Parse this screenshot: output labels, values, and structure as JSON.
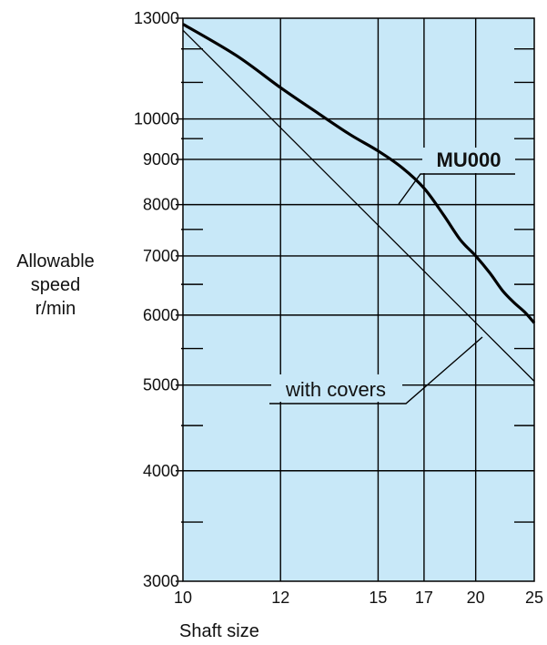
{
  "chart_data": {
    "type": "line",
    "title": "",
    "xlabel": "Shaft size",
    "ylabel_lines": [
      "Allowable",
      "speed",
      "r/min"
    ],
    "x_scale": "reciprocal",
    "y_scale": "log",
    "xlim": [
      10,
      25
    ],
    "ylim": [
      3000,
      13000
    ],
    "x_ticks": [
      10,
      12,
      15,
      17,
      20,
      25
    ],
    "x_tick_labels": [
      "10",
      "12",
      "15",
      "17",
      "20",
      "25"
    ],
    "y_major_ticks": [
      3000,
      4000,
      5000,
      6000,
      7000,
      8000,
      9000,
      10000,
      13000
    ],
    "y_major_tick_labels": [
      "3000",
      "4000",
      "5000",
      "6000",
      "7000",
      "8000",
      "9000",
      "10000",
      "13000"
    ],
    "y_minor_ticks": [
      3500,
      4500,
      5500,
      6500,
      7500,
      9500,
      11000,
      12000
    ],
    "grid": true,
    "background": "#c8e8f8",
    "series": [
      {
        "name": "MU000",
        "style": "bold",
        "color": "#000000",
        "x": [
          10,
          11,
          12,
          13,
          14,
          15,
          16,
          17,
          18,
          19,
          20,
          21,
          22,
          23,
          24,
          25
        ],
        "y": [
          12800,
          11800,
          10850,
          10150,
          9600,
          9200,
          8800,
          8350,
          7800,
          7300,
          7000,
          6700,
          6400,
          6200,
          6050,
          5880
        ]
      },
      {
        "name": "with covers",
        "style": "thin",
        "color": "#000000",
        "x": [
          10,
          25
        ],
        "y": [
          12600,
          5050
        ]
      }
    ],
    "annotations": [
      {
        "text": "MU000",
        "series": "MU000",
        "bold": true
      },
      {
        "text": "with covers",
        "series": "with covers",
        "bold": false
      }
    ]
  }
}
